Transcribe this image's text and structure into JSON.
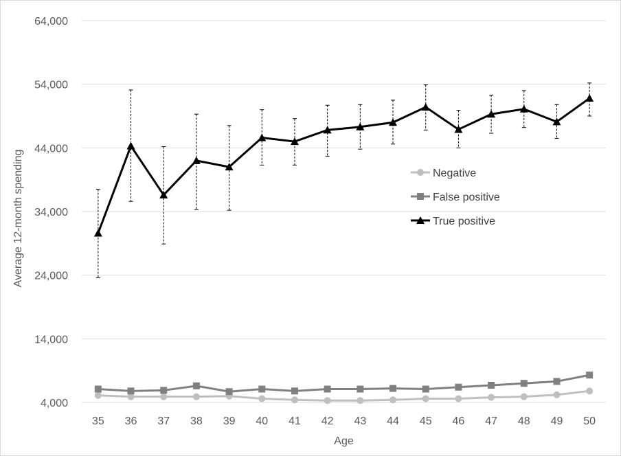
{
  "chart_data": {
    "type": "line",
    "title": "",
    "xlabel": "Age",
    "ylabel": "Average 12-month spending",
    "x": [
      35,
      36,
      37,
      38,
      39,
      40,
      41,
      42,
      43,
      44,
      45,
      46,
      47,
      48,
      49,
      50
    ],
    "ylim": [
      4000,
      64000
    ],
    "y_ticks": [
      "4,000",
      "14,000",
      "24,000",
      "34,000",
      "44,000",
      "54,000",
      "64,000"
    ],
    "y_tick_values": [
      4000,
      14000,
      24000,
      34000,
      44000,
      54000,
      64000
    ],
    "grid": true,
    "legend_position": "right",
    "series": [
      {
        "name": "Negative",
        "color": "#bfbfbf",
        "marker": "circle",
        "values": [
          5100,
          4900,
          4900,
          4900,
          5000,
          4600,
          4400,
          4300,
          4300,
          4400,
          4600,
          4600,
          4800,
          4900,
          5200,
          5800
        ]
      },
      {
        "name": "False positive",
        "color": "#808080",
        "marker": "square",
        "values": [
          6100,
          5800,
          5900,
          6600,
          5700,
          6100,
          5800,
          6100,
          6100,
          6200,
          6100,
          6400,
          6700,
          7000,
          7300,
          8300
        ]
      },
      {
        "name": "True positive",
        "color": "#000000",
        "marker": "triangle",
        "values": [
          30600,
          44300,
          36600,
          42000,
          41000,
          45600,
          45000,
          46800,
          47300,
          48000,
          50400,
          46900,
          49300,
          50100,
          48100,
          51800
        ],
        "error_low": [
          23600,
          35600,
          28900,
          34300,
          34200,
          41300,
          41300,
          42700,
          43800,
          44600,
          46800,
          44000,
          46300,
          47200,
          45500,
          49000
        ],
        "error_high": [
          37500,
          53100,
          44200,
          49300,
          47500,
          50000,
          48600,
          50700,
          50800,
          51500,
          53900,
          49900,
          52300,
          53000,
          50800,
          54200
        ]
      }
    ]
  }
}
